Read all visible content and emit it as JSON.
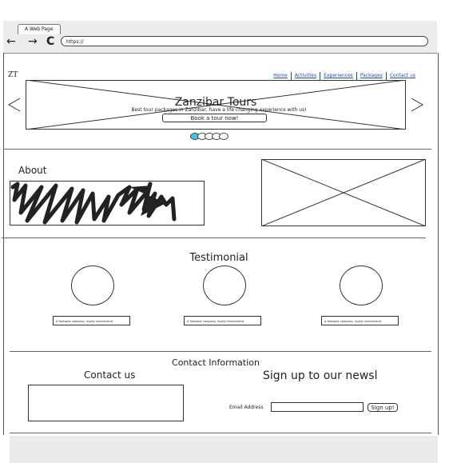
{
  "browser": {
    "tab_title": "A Web Page",
    "back_icon": "←",
    "forward_icon": "→",
    "reload_icon": "C",
    "url": "https://"
  },
  "header": {
    "logo": "ZT",
    "nav": [
      "Home",
      "Activities",
      "Experiences",
      "Packages",
      "Contact us"
    ]
  },
  "hero": {
    "title": "Zanzibar Tours",
    "subtitle": "Best tour packages in Zanzibar, have a life changing experience with us!",
    "cta_label": "Book a tour now!",
    "slides": {
      "total": 5,
      "active": 0
    },
    "active_dot_color": "#3fc6e4"
  },
  "about": {
    "heading": "About"
  },
  "testimonial": {
    "heading": "Testimonial",
    "quotes": [
      "A fantastic company, highly recommend",
      "A fantastic company, highly recommend",
      "A fantastic company, highly recommend"
    ]
  },
  "contact": {
    "section_title": "Contact Information",
    "contact_heading": "Contact us",
    "newsletter_heading": "Sign up to our newsl",
    "email_label": "Email Address",
    "email_value": "",
    "signup_label": "Sign up!"
  }
}
